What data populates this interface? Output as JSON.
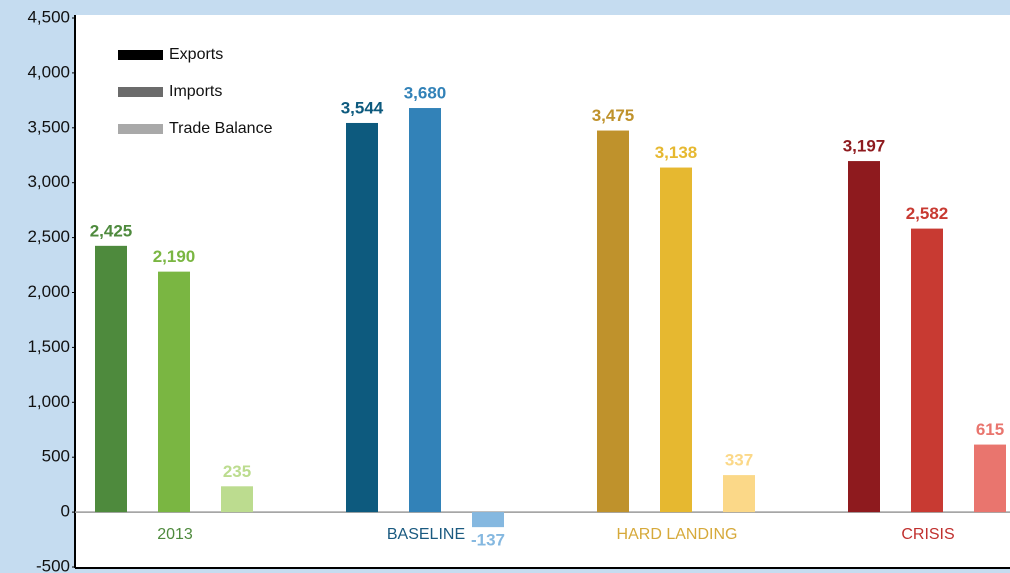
{
  "chart_data": {
    "type": "bar",
    "categories": [
      "2013",
      "BASELINE",
      "HARD LANDING",
      "CRISIS"
    ],
    "category_colors": [
      "#4e8a3d",
      "#1a5a80",
      "#d6a93a",
      "#c0302e"
    ],
    "series": [
      {
        "name": "Exports",
        "color": "#000000",
        "colors": [
          "#4e8a3d",
          "#0d5a7e",
          "#bf922c",
          "#8e1a1e"
        ],
        "values": [
          2425,
          3544,
          3475,
          3197
        ],
        "value_labels": [
          "2,425",
          "3,544",
          "3,475",
          "3,197"
        ]
      },
      {
        "name": "Imports",
        "color": "#6b6b6b",
        "colors": [
          "#7ab642",
          "#3282b8",
          "#e6b830",
          "#c83a32"
        ],
        "values": [
          2190,
          3680,
          3138,
          2582
        ],
        "value_labels": [
          "2,190",
          "3,680",
          "3,138",
          "2,582"
        ]
      },
      {
        "name": "Trade Balance",
        "color": "#a9a9a9",
        "colors": [
          "#bcdc8f",
          "#85b8e0",
          "#fbd888",
          "#e9756e"
        ],
        "values": [
          235,
          -137,
          337,
          615
        ],
        "value_labels": [
          "235",
          "-137",
          "337",
          "615"
        ]
      }
    ],
    "ylim": [
      -500,
      4500
    ],
    "yticks": [
      -500,
      0,
      500,
      {
        "value": 1000,
        "label": "1,000"
      },
      {
        "value": 1500,
        "label": "1,500"
      },
      {
        "value": 2000,
        "label": "2,000"
      },
      {
        "value": 2500,
        "label": "2,500"
      },
      {
        "value": 3000,
        "label": "3,000"
      },
      {
        "value": 3500,
        "label": "3,500"
      },
      {
        "value": 4000,
        "label": "4,000"
      },
      {
        "value": 4500,
        "label": "4,500"
      }
    ]
  }
}
